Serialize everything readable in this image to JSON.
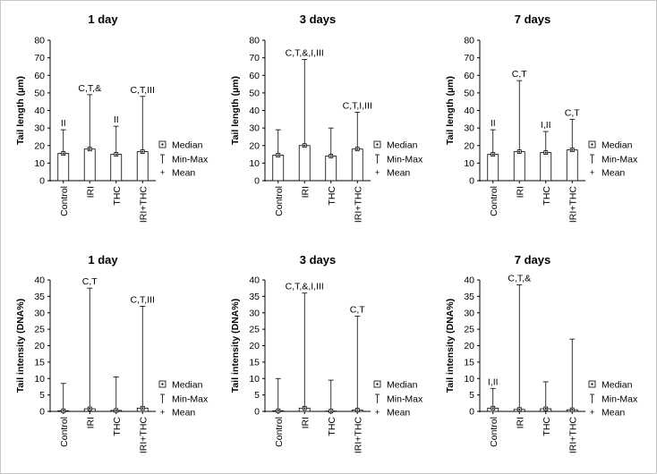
{
  "chart_data": [
    {
      "type": "box",
      "title": "1 day",
      "ylabel": "Tail length (µm)",
      "ylim": [
        0,
        80
      ],
      "ticks": [
        0,
        10,
        20,
        30,
        40,
        50,
        60,
        70,
        80
      ],
      "categories": [
        "Control",
        "IRI",
        "THC",
        "IRI+THC"
      ],
      "median": [
        15.5,
        18,
        15,
        16.5
      ],
      "min": [
        11,
        13,
        11,
        11
      ],
      "max": [
        29,
        49,
        31,
        48
      ],
      "mean": [
        15.5,
        18,
        15,
        16.5
      ],
      "annotations": [
        "II",
        "C,T,&",
        "II",
        "C,T,III"
      ]
    },
    {
      "type": "box",
      "title": "3 days",
      "ylabel": "Tail length (µm)",
      "ylim": [
        0,
        80
      ],
      "ticks": [
        0,
        10,
        20,
        30,
        40,
        50,
        60,
        70,
        80
      ],
      "categories": [
        "Control",
        "IRI",
        "THC",
        "IRI+THC"
      ],
      "median": [
        14.5,
        20,
        14,
        18
      ],
      "min": [
        9,
        12,
        9,
        12
      ],
      "max": [
        29,
        69,
        30,
        39
      ],
      "mean": [
        14.5,
        20,
        14,
        18
      ],
      "annotations": [
        "",
        "C,T,&,I,III",
        "",
        "C,T,I,III"
      ]
    },
    {
      "type": "box",
      "title": "7 days",
      "ylabel": "Tail length (µm)",
      "ylim": [
        0,
        80
      ],
      "ticks": [
        0,
        10,
        20,
        30,
        40,
        50,
        60,
        70,
        80
      ],
      "categories": [
        "Control",
        "IRI",
        "THC",
        "IRI+THC"
      ],
      "median": [
        15,
        16.5,
        16,
        17.5
      ],
      "min": [
        10,
        11,
        9,
        11
      ],
      "max": [
        29,
        57,
        28,
        35
      ],
      "mean": [
        15,
        16.5,
        16,
        17.5
      ],
      "annotations": [
        "II",
        "C,T",
        "I,II",
        "C,T"
      ]
    },
    {
      "type": "box",
      "title": "1 day",
      "ylabel": "Tail intensity (DNA%)",
      "ylim": [
        0,
        40
      ],
      "ticks": [
        0,
        5,
        10,
        15,
        20,
        25,
        30,
        35,
        40
      ],
      "categories": [
        "Control",
        "IRI",
        "THC",
        "IRI+THC"
      ],
      "median": [
        0.2,
        0.8,
        0.3,
        1.0
      ],
      "min": [
        0,
        0,
        0,
        0
      ],
      "max": [
        8.5,
        37.5,
        10.5,
        32
      ],
      "mean": [
        0.2,
        0.8,
        0.3,
        1.0
      ],
      "annotations": [
        "",
        "C,T",
        "",
        "C,T,III"
      ]
    },
    {
      "type": "box",
      "title": "3 days",
      "ylabel": "Tail intensity (DNA%)",
      "ylim": [
        0,
        40
      ],
      "ticks": [
        0,
        5,
        10,
        15,
        20,
        25,
        30,
        35,
        40
      ],
      "categories": [
        "Control",
        "IRI",
        "THC",
        "IRI+THC"
      ],
      "median": [
        0.2,
        1.0,
        0.1,
        0.4
      ],
      "min": [
        0,
        0,
        0,
        0
      ],
      "max": [
        10,
        36,
        9.5,
        29
      ],
      "mean": [
        0.2,
        1.0,
        0.1,
        0.4
      ],
      "annotations": [
        "",
        "C,T,&,I,III",
        "",
        "C,T"
      ]
    },
    {
      "type": "box",
      "title": "7 days",
      "ylabel": "Tail intensity (DNA%)",
      "ylim": [
        0,
        40
      ],
      "ticks": [
        0,
        5,
        10,
        15,
        20,
        25,
        30,
        35,
        40
      ],
      "categories": [
        "Control",
        "IRI",
        "THC",
        "IRI+THC"
      ],
      "median": [
        1.0,
        0.6,
        0.8,
        0.5
      ],
      "min": [
        0,
        0,
        0,
        0
      ],
      "max": [
        7,
        38.5,
        9,
        22
      ],
      "mean": [
        1.0,
        0.6,
        0.8,
        0.5
      ],
      "annotations": [
        "I,II",
        "C,T,&",
        "",
        ""
      ]
    }
  ],
  "legend": {
    "median": "Median",
    "minmax": "Min-Max",
    "mean": "Mean",
    "mean_symbol": "+"
  },
  "colors": {
    "axis": "#000000",
    "box": "#000000",
    "background": "#ffffff"
  }
}
